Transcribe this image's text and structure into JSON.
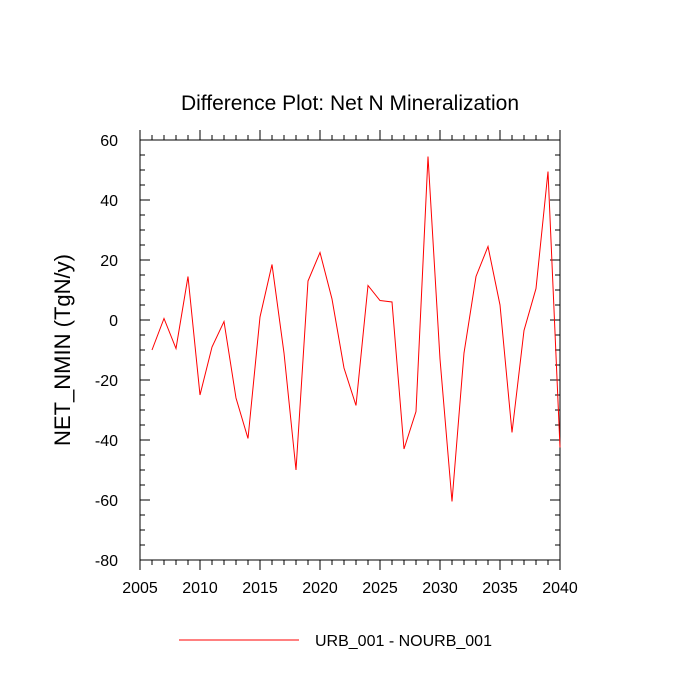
{
  "chart_data": {
    "type": "line",
    "title": "Difference Plot: Net N Mineralization",
    "xlabel": "",
    "ylabel": "NET_NMIN  (TgN/y)",
    "xlim": [
      2005,
      2040
    ],
    "ylim": [
      -80,
      60
    ],
    "x_ticks": [
      2005,
      2010,
      2015,
      2020,
      2025,
      2030,
      2035,
      2040
    ],
    "y_ticks": [
      -80,
      -60,
      -40,
      -20,
      0,
      20,
      40,
      60
    ],
    "x_tick_labels": [
      "2005",
      "2010",
      "2015",
      "2020",
      "2025",
      "2030",
      "2035",
      "2040"
    ],
    "y_tick_labels": [
      "-80",
      "-60",
      "-40",
      "-20",
      "0",
      "20",
      "40",
      "60"
    ],
    "grid": false,
    "legend_position": "bottom",
    "series": [
      {
        "name": "URB_001 - NOURB_001",
        "color": "#ff0000",
        "x": [
          2006,
          2007,
          2008,
          2009,
          2010,
          2011,
          2012,
          2013,
          2014,
          2015,
          2016,
          2017,
          2018,
          2019,
          2020,
          2021,
          2022,
          2023,
          2024,
          2025,
          2026,
          2027,
          2028,
          2029,
          2030,
          2031,
          2032,
          2033,
          2034,
          2035,
          2036,
          2037,
          2038,
          2039,
          2040
        ],
        "values": [
          -10,
          0.5,
          -9.5,
          14.5,
          -25,
          -9,
          -0.5,
          -26,
          -39.5,
          1,
          18.5,
          -11,
          -50,
          13,
          22.5,
          7,
          -16,
          -28.5,
          11.5,
          6.5,
          6,
          -43,
          -30.5,
          54.5,
          -13,
          -60.5,
          -11,
          14.5,
          24.5,
          5,
          -37.5,
          -3.5,
          10.5,
          49.5,
          -42.5
        ]
      }
    ]
  }
}
